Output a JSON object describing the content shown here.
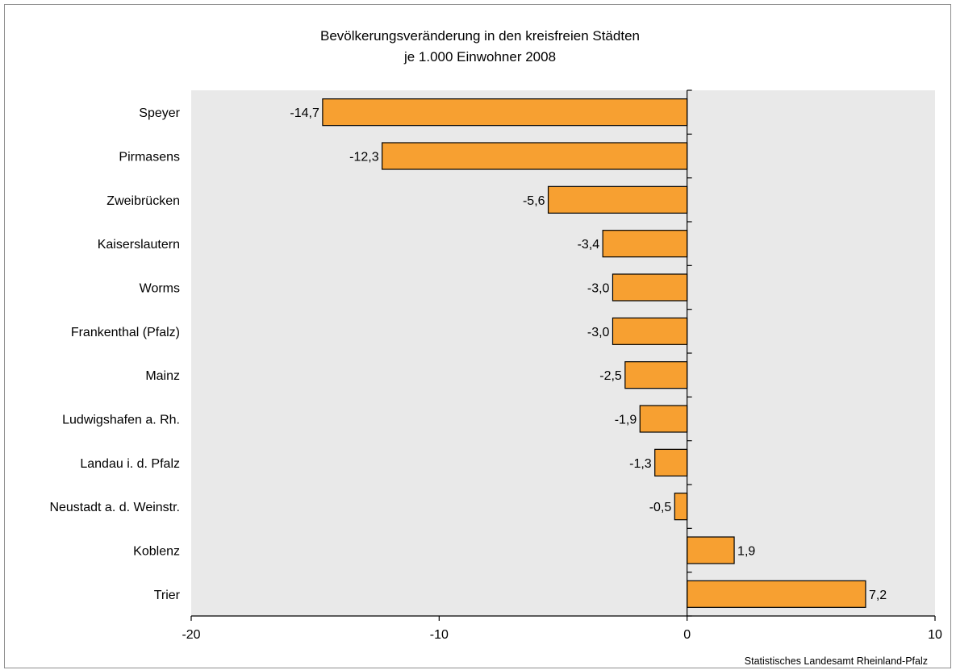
{
  "chart_data": {
    "type": "bar",
    "orientation": "horizontal",
    "title": "Bevölkerungsveränderung in den kreisfreien Städten",
    "subtitle": "je 1.000 Einwohner 2008",
    "categories": [
      "Speyer",
      "Pirmasens",
      "Zweibrücken",
      "Kaiserslautern",
      "Worms",
      "Frankenthal (Pfalz)",
      "Mainz",
      "Ludwigshafen a. Rh.",
      "Landau i. d. Pfalz",
      "Neustadt a. d. Weinstr.",
      "Koblenz",
      "Trier"
    ],
    "values": [
      -14.7,
      -12.3,
      -5.6,
      -3.4,
      -3.0,
      -3.0,
      -2.5,
      -1.9,
      -1.3,
      -0.5,
      1.9,
      7.2
    ],
    "value_labels": [
      "-14,7",
      "-12,3",
      "-5,6",
      "-3,4",
      "-3,0",
      "-3,0",
      "-2,5",
      "-1,9",
      "-1,3",
      "-0,5",
      "1,9",
      "7,2"
    ],
    "xlim": [
      -20,
      10
    ],
    "xticks": [
      -20,
      -10,
      0,
      10
    ],
    "xtick_labels": [
      "-20",
      "-10",
      "0",
      "10"
    ],
    "xlabel": "",
    "ylabel": "",
    "grid": false,
    "legend": "none",
    "source": "Statistisches Landesamt Rheinland-Pfalz",
    "colors": {
      "bar": "#f7a031",
      "bar_stroke": "#000000",
      "plot_background": "#e9e9e9",
      "axis": "#000000",
      "text": "#000000"
    }
  }
}
